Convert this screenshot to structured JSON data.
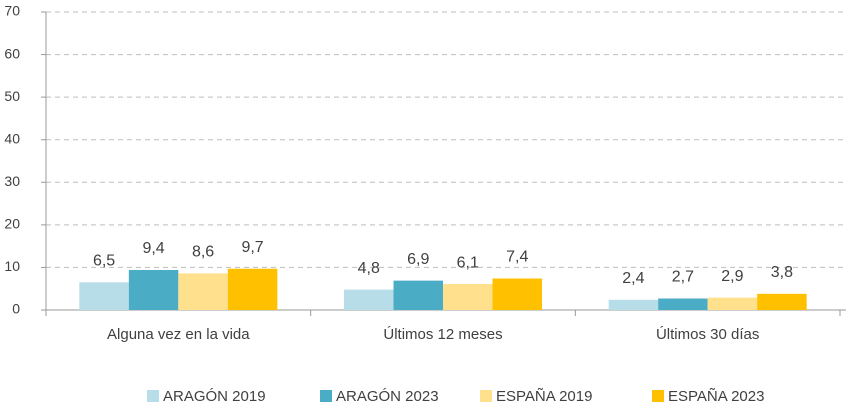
{
  "chart_data": {
    "type": "bar",
    "categories": [
      "Alguna vez en la vida",
      "Últimos 12 meses",
      "Últimos 30 días"
    ],
    "series": [
      {
        "name": "ARAGÓN 2019",
        "color": "#b7dde8",
        "values": [
          6.5,
          4.8,
          2.4
        ],
        "value_labels": [
          "6,5",
          "4,8",
          "2,4"
        ]
      },
      {
        "name": "ARAGÓN 2023",
        "color": "#4bacc6",
        "values": [
          9.4,
          6.9,
          2.7
        ],
        "value_labels": [
          "9,4",
          "6,9",
          "2,7"
        ]
      },
      {
        "name": "ESPAÑA 2019",
        "color": "#ffe08c",
        "values": [
          8.6,
          6.1,
          2.9
        ],
        "value_labels": [
          "8,6",
          "6,1",
          "2,9"
        ]
      },
      {
        "name": "ESPAÑA 2023",
        "color": "#ffc000",
        "values": [
          9.7,
          7.4,
          3.8
        ],
        "value_labels": [
          "9,7",
          "7,4",
          "3,8"
        ]
      }
    ],
    "ylim": [
      0,
      70
    ],
    "yticks": [
      0,
      10,
      20,
      30,
      40,
      50,
      60,
      70
    ],
    "grid": true,
    "legend": "bottom"
  }
}
